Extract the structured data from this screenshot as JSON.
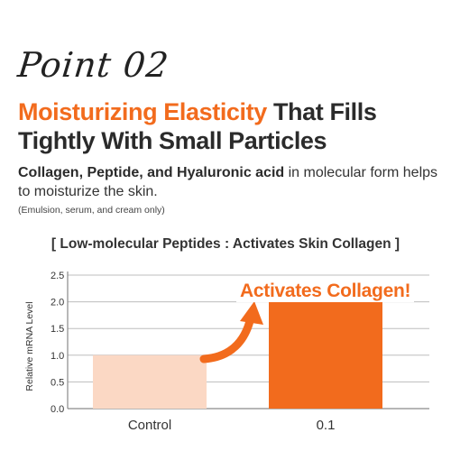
{
  "header": {
    "point_label": "Point 02",
    "headline_accent": "Moisturizing Elasticity",
    "headline_rest_line1": " That Fills",
    "headline_line2": "Tightly With Small Particles"
  },
  "description": {
    "bold_part": "Collagen, Peptide, and Hyaluronic acid",
    "rest_part": " in molecular form helps to moisturize the skin.",
    "note": "(Emulsion, serum, and cream only)"
  },
  "chart_data": {
    "type": "bar",
    "title": "[ Low-molecular Peptides : Activates Skin Collagen ]",
    "categories": [
      "Control",
      "0.1"
    ],
    "values": [
      1.0,
      2.0
    ],
    "ylabel": "Relative mRNA Level",
    "xlabel": "",
    "ylim": [
      0,
      2.5
    ],
    "yticks": [
      "0.0",
      "0.5",
      "1.0",
      "1.5",
      "2.0",
      "2.5"
    ],
    "grid": true,
    "annotation": "Activates Collagen!",
    "colors": {
      "bars": [
        "#fbd8c4",
        "#f26b1d"
      ],
      "accent": "#f26b1d",
      "grid": "#bdbdbd",
      "axis": "#8a8a8a"
    }
  }
}
